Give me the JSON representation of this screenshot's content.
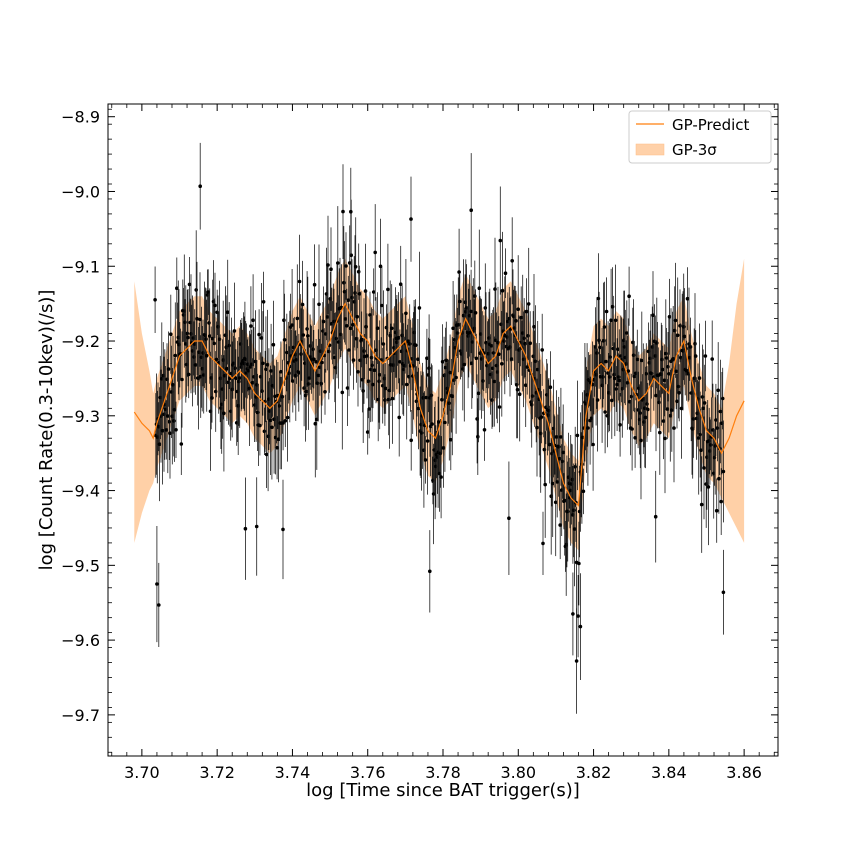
{
  "chart_data": {
    "type": "scatter",
    "title": "",
    "xlabel": "log [Time since BAT trigger(s)]",
    "ylabel": "log [Count Rate(0.3-10kev)(/s)]",
    "xlim": [
      3.691,
      3.869
    ],
    "ylim": [
      -9.755,
      -8.883
    ],
    "xticks": [
      "3.70",
      "3.72",
      "3.74",
      "3.76",
      "3.78",
      "3.80",
      "3.82",
      "3.84",
      "3.86"
    ],
    "yticks": [
      "-8.9",
      "-9.0",
      "-9.1",
      "-9.2",
      "-9.3",
      "-9.4",
      "-9.5",
      "-9.6",
      "-9.7"
    ],
    "grid": false,
    "legend": {
      "position": "top-right",
      "entries": [
        {
          "label": "GP-Predict",
          "kind": "line",
          "color": "#ff7f0e"
        },
        {
          "label": "GP-3σ",
          "kind": "band",
          "color": "#ffbe85"
        }
      ]
    },
    "gp_predict": {
      "x": [
        3.698,
        3.7,
        3.702,
        3.703,
        3.704,
        3.706,
        3.708,
        3.71,
        3.712,
        3.714,
        3.716,
        3.718,
        3.72,
        3.722,
        3.724,
        3.726,
        3.728,
        3.73,
        3.732,
        3.734,
        3.736,
        3.738,
        3.74,
        3.742,
        3.744,
        3.746,
        3.748,
        3.75,
        3.752,
        3.754,
        3.756,
        3.758,
        3.76,
        3.762,
        3.764,
        3.766,
        3.768,
        3.77,
        3.772,
        3.774,
        3.776,
        3.778,
        3.78,
        3.782,
        3.784,
        3.786,
        3.788,
        3.79,
        3.792,
        3.794,
        3.796,
        3.798,
        3.8,
        3.802,
        3.804,
        3.806,
        3.808,
        3.81,
        3.812,
        3.814,
        3.816,
        3.818,
        3.82,
        3.822,
        3.824,
        3.826,
        3.828,
        3.83,
        3.832,
        3.834,
        3.836,
        3.838,
        3.84,
        3.842,
        3.844,
        3.846,
        3.848,
        3.85,
        3.852,
        3.854,
        3.856,
        3.858,
        3.86
      ],
      "y": [
        -9.295,
        -9.31,
        -9.32,
        -9.33,
        -9.31,
        -9.28,
        -9.25,
        -9.22,
        -9.21,
        -9.2,
        -9.2,
        -9.22,
        -9.23,
        -9.24,
        -9.25,
        -9.24,
        -9.25,
        -9.27,
        -9.28,
        -9.29,
        -9.28,
        -9.25,
        -9.22,
        -9.2,
        -9.22,
        -9.24,
        -9.22,
        -9.2,
        -9.17,
        -9.15,
        -9.17,
        -9.19,
        -9.2,
        -9.22,
        -9.23,
        -9.22,
        -9.21,
        -9.2,
        -9.24,
        -9.29,
        -9.32,
        -9.33,
        -9.3,
        -9.26,
        -9.2,
        -9.17,
        -9.19,
        -9.21,
        -9.23,
        -9.22,
        -9.19,
        -9.18,
        -9.2,
        -9.22,
        -9.25,
        -9.28,
        -9.31,
        -9.35,
        -9.39,
        -9.41,
        -9.42,
        -9.3,
        -9.24,
        -9.23,
        -9.24,
        -9.22,
        -9.23,
        -9.26,
        -9.28,
        -9.27,
        -9.25,
        -9.26,
        -9.27,
        -9.22,
        -9.2,
        -9.25,
        -9.29,
        -9.32,
        -9.33,
        -9.35,
        -9.33,
        -9.3,
        -9.28
      ],
      "sigma3": [
        0.175,
        0.12,
        0.08,
        0.06,
        0.06,
        0.06,
        0.06,
        0.06,
        0.06,
        0.06,
        0.06,
        0.06,
        0.06,
        0.06,
        0.06,
        0.06,
        0.06,
        0.06,
        0.06,
        0.06,
        0.06,
        0.06,
        0.06,
        0.06,
        0.06,
        0.06,
        0.06,
        0.06,
        0.06,
        0.06,
        0.06,
        0.06,
        0.06,
        0.06,
        0.06,
        0.06,
        0.06,
        0.06,
        0.06,
        0.06,
        0.06,
        0.06,
        0.06,
        0.06,
        0.06,
        0.06,
        0.06,
        0.06,
        0.06,
        0.06,
        0.06,
        0.06,
        0.06,
        0.06,
        0.06,
        0.06,
        0.06,
        0.06,
        0.06,
        0.06,
        0.06,
        0.06,
        0.06,
        0.06,
        0.06,
        0.06,
        0.06,
        0.06,
        0.06,
        0.06,
        0.06,
        0.06,
        0.06,
        0.06,
        0.06,
        0.06,
        0.06,
        0.06,
        0.06,
        0.06,
        0.1,
        0.15,
        0.19
      ]
    },
    "observations": {
      "x_start": 3.7035,
      "x_end": 3.8545,
      "count": 760,
      "outliers": [
        {
          "x": 3.704,
          "y": -9.525
        },
        {
          "x": 3.7045,
          "y": -9.553
        },
        {
          "x": 3.7155,
          "y": -8.993
        },
        {
          "x": 3.7275,
          "y": -9.451
        },
        {
          "x": 3.7305,
          "y": -9.448
        },
        {
          "x": 3.7375,
          "y": -9.452
        },
        {
          "x": 3.7555,
          "y": -9.027
        },
        {
          "x": 3.7715,
          "y": -9.037
        },
        {
          "x": 3.7765,
          "y": -9.508
        },
        {
          "x": 3.7875,
          "y": -9.025
        },
        {
          "x": 3.7975,
          "y": -9.437
        },
        {
          "x": 3.8145,
          "y": -9.565
        },
        {
          "x": 3.8155,
          "y": -9.628
        },
        {
          "x": 3.8165,
          "y": -9.582
        },
        {
          "x": 3.8365,
          "y": -9.435
        },
        {
          "x": 3.8545,
          "y": -9.536
        }
      ]
    }
  }
}
